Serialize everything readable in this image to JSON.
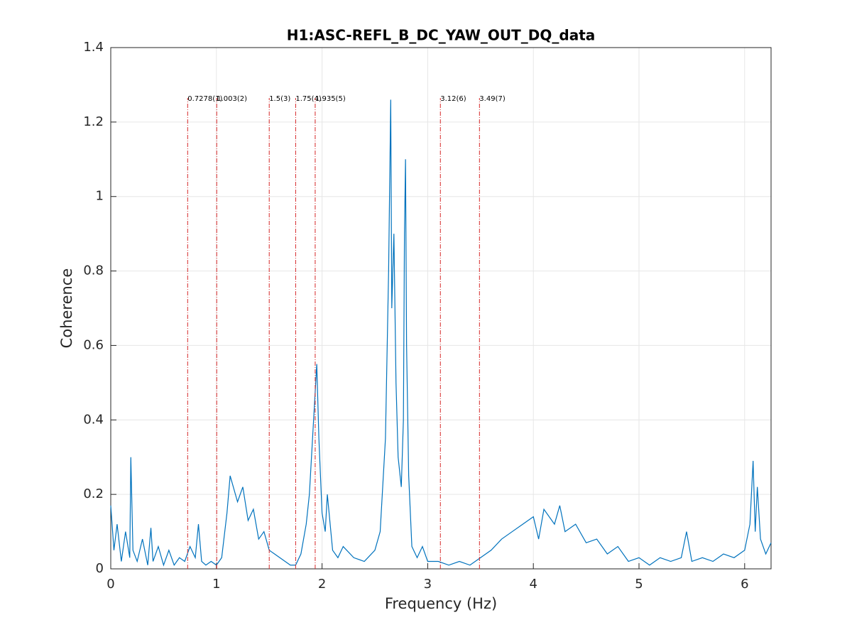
{
  "chart_data": {
    "type": "line",
    "title": "H1:ASC-REFL_B_DC_YAW_OUT_DQ_data",
    "x_label": "Frequency (Hz)",
    "y_label": "Coherence",
    "xlim": [
      0,
      6.25
    ],
    "ylim": [
      0,
      1.4
    ],
    "xticks": [
      0,
      1,
      2,
      3,
      4,
      5,
      6
    ],
    "yticks": [
      0,
      0.2,
      0.4,
      0.6,
      0.8,
      1,
      1.2,
      1.4
    ],
    "grid": true,
    "series": [
      {
        "color": "#0072bd",
        "x": [
          0,
          0.03,
          0.06,
          0.1,
          0.14,
          0.18,
          0.19,
          0.21,
          0.25,
          0.3,
          0.35,
          0.38,
          0.4,
          0.45,
          0.5,
          0.55,
          0.6,
          0.65,
          0.7,
          0.75,
          0.8,
          0.83,
          0.86,
          0.9,
          0.95,
          1.0,
          1.05,
          1.1,
          1.13,
          1.2,
          1.25,
          1.3,
          1.35,
          1.4,
          1.45,
          1.5,
          1.55,
          1.6,
          1.65,
          1.7,
          1.75,
          1.8,
          1.85,
          1.88,
          1.9,
          1.93,
          1.95,
          1.97,
          2.0,
          2.03,
          2.05,
          2.1,
          2.15,
          2.2,
          2.3,
          2.4,
          2.5,
          2.55,
          2.6,
          2.63,
          2.65,
          2.66,
          2.68,
          2.7,
          2.72,
          2.75,
          2.77,
          2.78,
          2.79,
          2.8,
          2.82,
          2.85,
          2.9,
          2.95,
          3.0,
          3.1,
          3.2,
          3.3,
          3.4,
          3.5,
          3.6,
          3.7,
          3.8,
          3.9,
          4.0,
          4.05,
          4.1,
          4.2,
          4.25,
          4.3,
          4.4,
          4.5,
          4.6,
          4.7,
          4.8,
          4.9,
          5.0,
          5.1,
          5.2,
          5.3,
          5.4,
          5.45,
          5.5,
          5.6,
          5.7,
          5.8,
          5.9,
          6.0,
          6.05,
          6.08,
          6.1,
          6.12,
          6.15,
          6.2,
          6.25
        ],
        "values": [
          0.17,
          0.05,
          0.12,
          0.02,
          0.1,
          0.03,
          0.3,
          0.05,
          0.02,
          0.08,
          0.01,
          0.11,
          0.02,
          0.06,
          0.01,
          0.05,
          0.01,
          0.03,
          0.02,
          0.06,
          0.03,
          0.12,
          0.02,
          0.01,
          0.02,
          0.01,
          0.03,
          0.15,
          0.25,
          0.18,
          0.22,
          0.13,
          0.16,
          0.08,
          0.1,
          0.05,
          0.04,
          0.03,
          0.02,
          0.01,
          0.01,
          0.04,
          0.12,
          0.2,
          0.3,
          0.45,
          0.55,
          0.35,
          0.15,
          0.1,
          0.2,
          0.05,
          0.03,
          0.06,
          0.03,
          0.02,
          0.05,
          0.1,
          0.35,
          0.8,
          1.26,
          0.7,
          0.9,
          0.5,
          0.3,
          0.22,
          0.4,
          0.9,
          1.1,
          0.6,
          0.25,
          0.06,
          0.03,
          0.06,
          0.02,
          0.02,
          0.01,
          0.02,
          0.01,
          0.03,
          0.05,
          0.08,
          0.1,
          0.12,
          0.14,
          0.08,
          0.16,
          0.12,
          0.17,
          0.1,
          0.12,
          0.07,
          0.08,
          0.04,
          0.06,
          0.02,
          0.03,
          0.01,
          0.03,
          0.02,
          0.03,
          0.1,
          0.02,
          0.03,
          0.02,
          0.04,
          0.03,
          0.05,
          0.12,
          0.29,
          0.1,
          0.22,
          0.08,
          0.04,
          0.07
        ]
      }
    ],
    "markers_color": "#d62728",
    "markers": [
      {
        "x": 0.7278,
        "label": "0.7278(1)"
      },
      {
        "x": 1.003,
        "label": "1.003(2)"
      },
      {
        "x": 1.5,
        "label": "1.5(3)"
      },
      {
        "x": 1.75,
        "label": "1.75(4)"
      },
      {
        "x": 1.935,
        "label": "1.935(5)"
      },
      {
        "x": 3.12,
        "label": "3.12(6)"
      },
      {
        "x": 3.49,
        "label": "3.49(7)"
      }
    ]
  }
}
